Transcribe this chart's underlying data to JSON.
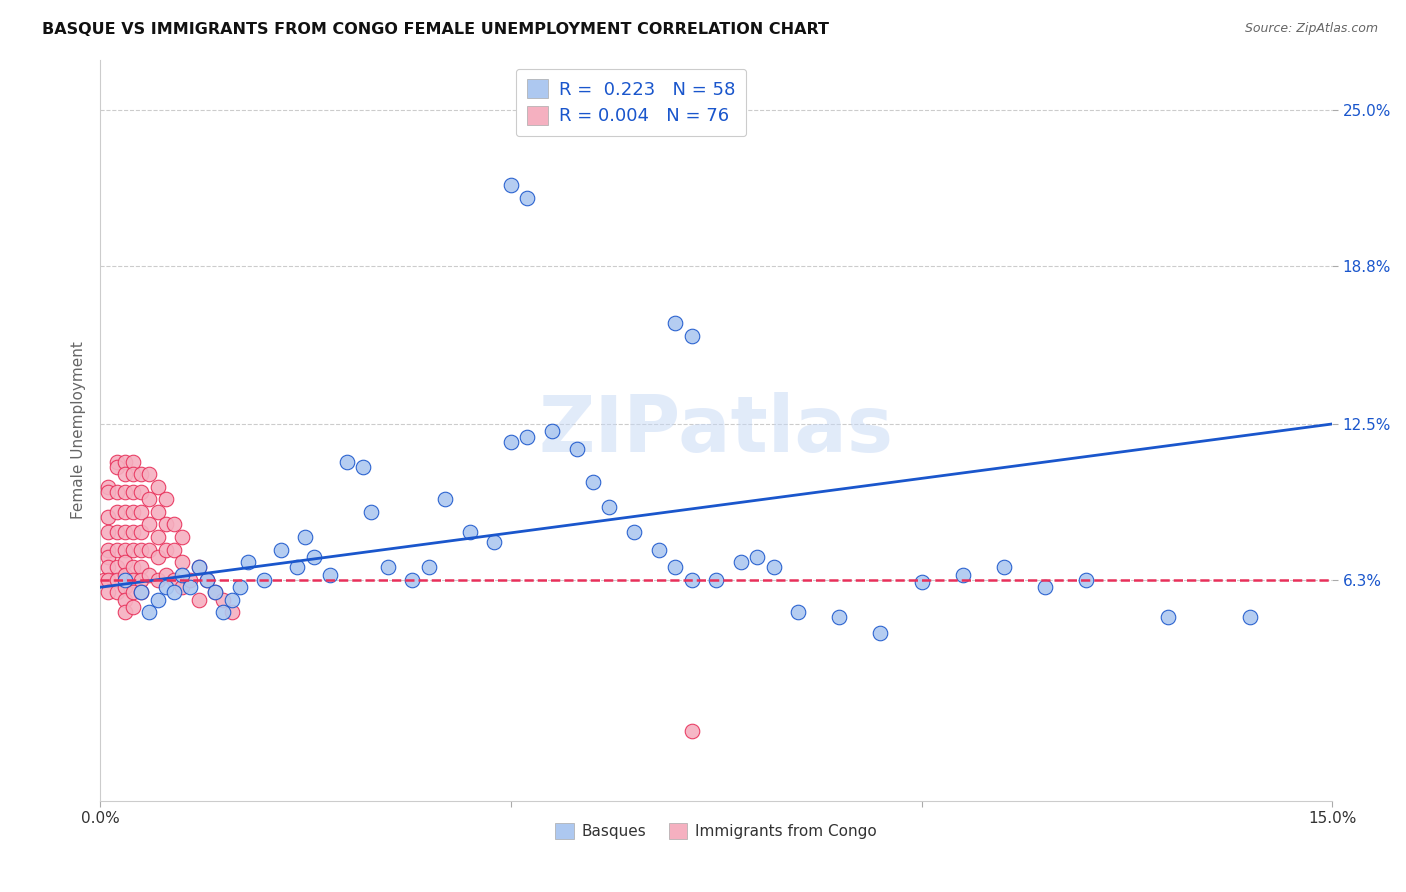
{
  "title": "BASQUE VS IMMIGRANTS FROM CONGO FEMALE UNEMPLOYMENT CORRELATION CHART",
  "source": "Source: ZipAtlas.com",
  "ylabel": "Female Unemployment",
  "xlim": [
    0,
    0.15
  ],
  "ylim": [
    -0.025,
    0.27
  ],
  "yticks": [
    0.063,
    0.125,
    0.188,
    0.25
  ],
  "ytick_labels": [
    "6.3%",
    "12.5%",
    "18.8%",
    "25.0%"
  ],
  "basque_color": "#adc8f0",
  "congo_color": "#f5b0c0",
  "basque_line_color": "#1a56cc",
  "congo_line_color": "#e8305a",
  "watermark_text": "ZIPatlas",
  "legend_line1": "R =  0.223   N = 58",
  "legend_line2": "R = 0.004   N = 76",
  "basque_x": [
    0.003,
    0.005,
    0.006,
    0.007,
    0.008,
    0.009,
    0.01,
    0.011,
    0.012,
    0.013,
    0.014,
    0.015,
    0.016,
    0.017,
    0.018,
    0.02,
    0.022,
    0.024,
    0.025,
    0.026,
    0.028,
    0.03,
    0.032,
    0.033,
    0.035,
    0.038,
    0.04,
    0.042,
    0.045,
    0.048,
    0.05,
    0.052,
    0.055,
    0.058,
    0.06,
    0.062,
    0.065,
    0.068,
    0.07,
    0.072,
    0.075,
    0.078,
    0.08,
    0.082,
    0.085,
    0.09,
    0.095,
    0.1,
    0.105,
    0.11,
    0.115,
    0.12,
    0.13,
    0.14,
    0.05,
    0.052,
    0.07,
    0.072
  ],
  "basque_y": [
    0.063,
    0.058,
    0.05,
    0.055,
    0.06,
    0.058,
    0.065,
    0.06,
    0.068,
    0.063,
    0.058,
    0.05,
    0.055,
    0.06,
    0.07,
    0.063,
    0.075,
    0.068,
    0.08,
    0.072,
    0.065,
    0.11,
    0.108,
    0.09,
    0.068,
    0.063,
    0.068,
    0.095,
    0.082,
    0.078,
    0.118,
    0.12,
    0.122,
    0.115,
    0.102,
    0.092,
    0.082,
    0.075,
    0.068,
    0.063,
    0.063,
    0.07,
    0.072,
    0.068,
    0.05,
    0.048,
    0.042,
    0.062,
    0.065,
    0.068,
    0.06,
    0.063,
    0.048,
    0.048,
    0.22,
    0.215,
    0.165,
    0.16
  ],
  "congo_x": [
    0.0005,
    0.001,
    0.001,
    0.001,
    0.001,
    0.001,
    0.001,
    0.001,
    0.001,
    0.001,
    0.002,
    0.002,
    0.002,
    0.002,
    0.002,
    0.002,
    0.002,
    0.002,
    0.002,
    0.003,
    0.003,
    0.003,
    0.003,
    0.003,
    0.003,
    0.003,
    0.003,
    0.003,
    0.003,
    0.003,
    0.004,
    0.004,
    0.004,
    0.004,
    0.004,
    0.004,
    0.004,
    0.004,
    0.004,
    0.004,
    0.005,
    0.005,
    0.005,
    0.005,
    0.005,
    0.005,
    0.005,
    0.005,
    0.006,
    0.006,
    0.006,
    0.006,
    0.006,
    0.007,
    0.007,
    0.007,
    0.007,
    0.007,
    0.008,
    0.008,
    0.008,
    0.008,
    0.009,
    0.009,
    0.009,
    0.01,
    0.01,
    0.01,
    0.011,
    0.012,
    0.012,
    0.013,
    0.014,
    0.015,
    0.016,
    0.072
  ],
  "congo_y": [
    0.063,
    0.1,
    0.098,
    0.088,
    0.082,
    0.075,
    0.072,
    0.068,
    0.063,
    0.058,
    0.11,
    0.108,
    0.098,
    0.09,
    0.082,
    0.075,
    0.068,
    0.063,
    0.058,
    0.11,
    0.105,
    0.098,
    0.09,
    0.082,
    0.075,
    0.07,
    0.065,
    0.06,
    0.055,
    0.05,
    0.11,
    0.105,
    0.098,
    0.09,
    0.082,
    0.075,
    0.068,
    0.063,
    0.058,
    0.052,
    0.105,
    0.098,
    0.09,
    0.082,
    0.075,
    0.068,
    0.063,
    0.058,
    0.105,
    0.095,
    0.085,
    0.075,
    0.065,
    0.1,
    0.09,
    0.08,
    0.072,
    0.063,
    0.095,
    0.085,
    0.075,
    0.065,
    0.085,
    0.075,
    0.063,
    0.08,
    0.07,
    0.06,
    0.063,
    0.068,
    0.055,
    0.063,
    0.058,
    0.055,
    0.05,
    0.003
  ],
  "basque_trend": [
    0.0,
    0.15,
    0.06,
    0.125
  ],
  "congo_trend": [
    0.0,
    0.15,
    0.063,
    0.063
  ]
}
